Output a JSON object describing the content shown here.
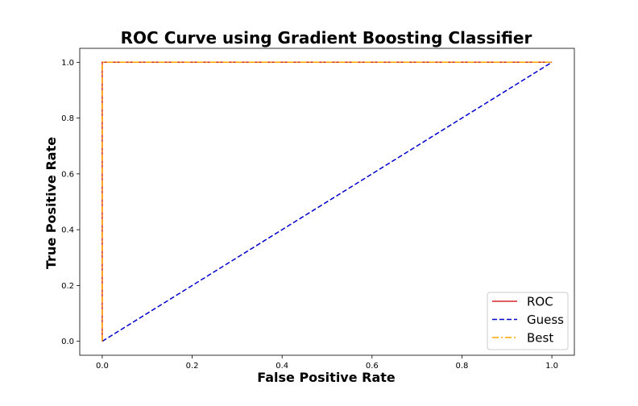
{
  "chart_data": {
    "type": "line",
    "title": "ROC Curve using Gradient Boosting Classifier",
    "xlabel": "False Positive Rate",
    "ylabel": "True Positive Rate",
    "xlim": [
      -0.05,
      1.05
    ],
    "ylim": [
      -0.05,
      1.05
    ],
    "xticks": [
      0.0,
      0.2,
      0.4,
      0.6,
      0.8,
      1.0
    ],
    "yticks": [
      0.0,
      0.2,
      0.4,
      0.6,
      0.8,
      1.0
    ],
    "xtick_labels": [
      "0.0",
      "0.2",
      "0.4",
      "0.6",
      "0.8",
      "1.0"
    ],
    "ytick_labels": [
      "0.0",
      "0.2",
      "0.4",
      "0.6",
      "0.8",
      "1.0"
    ],
    "grid": false,
    "legend_position": "lower-right",
    "series": [
      {
        "name": "ROC",
        "color": "#d62728",
        "style": "solid",
        "x": [
          0.0,
          0.0,
          1.0
        ],
        "y": [
          0.0,
          1.0,
          1.0
        ]
      },
      {
        "name": "Guess",
        "color": "#0000cc",
        "style": "dashed",
        "x": [
          0.0,
          1.0
        ],
        "y": [
          0.0,
          1.0
        ]
      },
      {
        "name": "Best",
        "color": "#ffa500",
        "style": "dashdot",
        "x": [
          0.0,
          0.0,
          1.0
        ],
        "y": [
          0.0,
          1.0,
          1.0
        ]
      }
    ]
  }
}
